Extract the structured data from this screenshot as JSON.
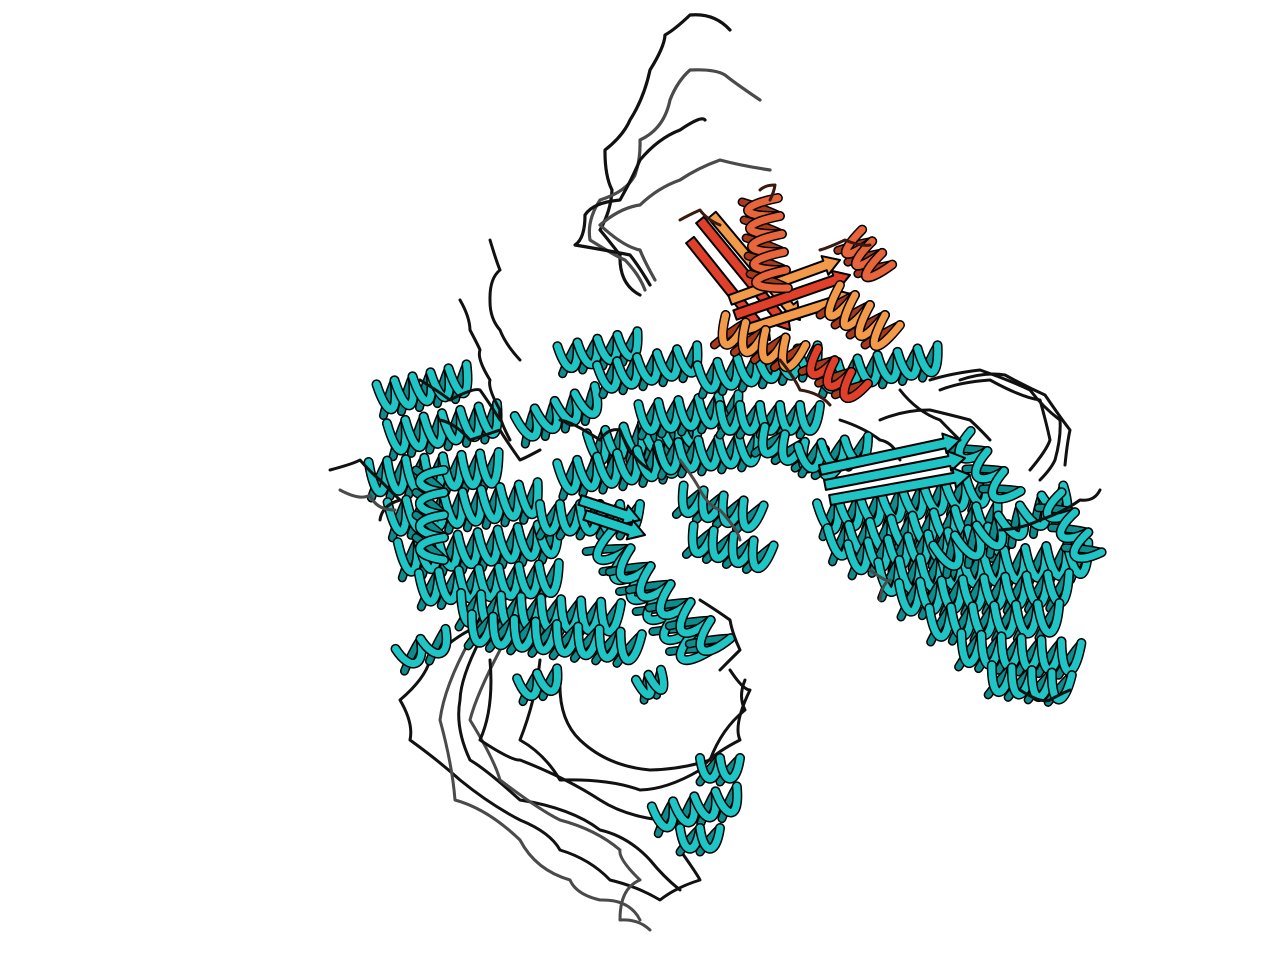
{
  "scene": {
    "background": "#ffffff",
    "style": "cartoon ribbon ensemble",
    "colors": {
      "main_chain_helix": "#1fc4c4",
      "main_chain_helix_dark": "#0c8c8c",
      "loops": "#111111",
      "loops_grey": "#4a4a4a",
      "bound_domain": "#e8643a",
      "bound_domain_light": "#f39a4a",
      "bound_domain_red": "#e0402a"
    }
  }
}
